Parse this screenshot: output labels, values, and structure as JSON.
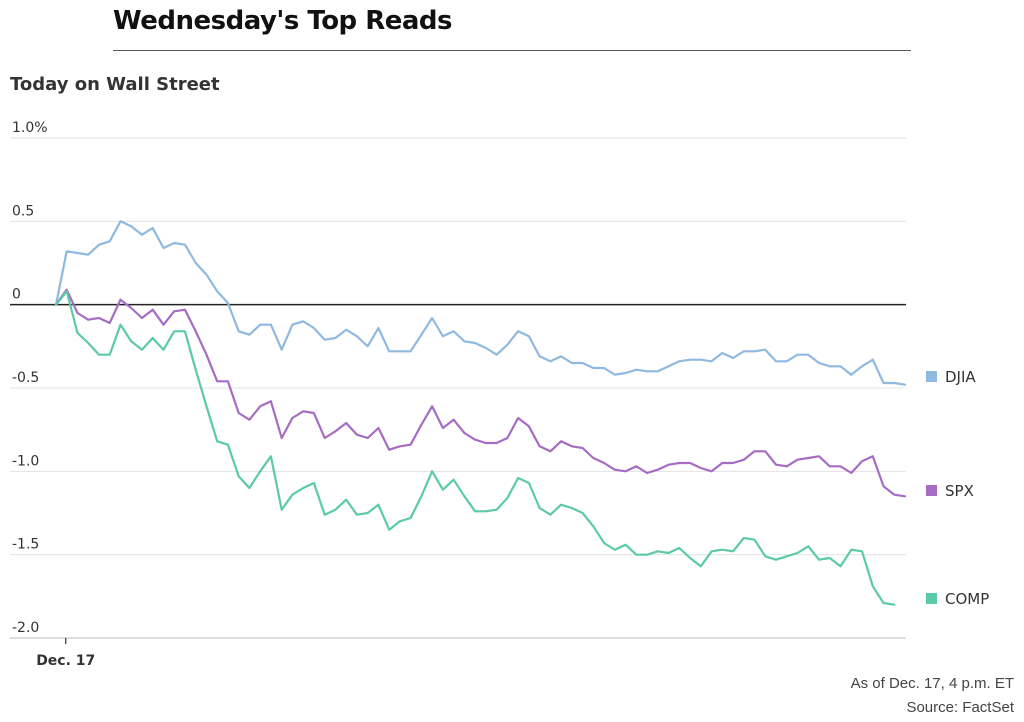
{
  "headline": "Wednesday's Top Reads",
  "footnote": {
    "as_of": "As of Dec. 17, 4 p.m. ET",
    "source": "Source: FactSet"
  },
  "chart_data": {
    "type": "line",
    "title": "Today on Wall Street",
    "xlabel": "",
    "ylabel": "",
    "ylim": [
      -2.0,
      1.0
    ],
    "yticks": [
      1.0,
      0.5,
      0,
      -0.5,
      -1.0,
      -1.5,
      -2.0
    ],
    "ytick_labels": [
      "1.0%",
      "0.5",
      "0",
      "-0.5",
      "-1.0",
      "-1.5",
      "-2.0"
    ],
    "x_tick_labels": [
      {
        "index": 1,
        "label": "Dec. 17"
      }
    ],
    "grid": true,
    "legend": "right",
    "series": [
      {
        "name": "DJIA",
        "color": "#8fb9e0",
        "values": [
          0.0,
          0.32,
          0.31,
          0.3,
          0.36,
          0.38,
          0.5,
          0.47,
          0.42,
          0.46,
          0.34,
          0.37,
          0.36,
          0.25,
          0.18,
          0.08,
          0.01,
          -0.16,
          -0.18,
          -0.12,
          -0.12,
          -0.27,
          -0.12,
          -0.1,
          -0.14,
          -0.21,
          -0.2,
          -0.15,
          -0.19,
          -0.25,
          -0.14,
          -0.28,
          -0.28,
          -0.28,
          -0.18,
          -0.08,
          -0.19,
          -0.16,
          -0.22,
          -0.23,
          -0.26,
          -0.3,
          -0.24,
          -0.16,
          -0.19,
          -0.31,
          -0.34,
          -0.31,
          -0.35,
          -0.35,
          -0.38,
          -0.38,
          -0.42,
          -0.41,
          -0.39,
          -0.4,
          -0.4,
          -0.37,
          -0.34,
          -0.33,
          -0.33,
          -0.34,
          -0.29,
          -0.32,
          -0.28,
          -0.28,
          -0.27,
          -0.34,
          -0.34,
          -0.3,
          -0.3,
          -0.35,
          -0.37,
          -0.37,
          -0.42,
          -0.37,
          -0.33,
          -0.47,
          -0.47,
          -0.48
        ]
      },
      {
        "name": "SPX",
        "color": "#a66cc4",
        "values": [
          0.0,
          0.09,
          -0.05,
          -0.09,
          -0.08,
          -0.11,
          0.03,
          -0.02,
          -0.08,
          -0.03,
          -0.12,
          -0.04,
          -0.03,
          -0.16,
          -0.3,
          -0.46,
          -0.46,
          -0.65,
          -0.69,
          -0.61,
          -0.58,
          -0.8,
          -0.68,
          -0.64,
          -0.65,
          -0.8,
          -0.76,
          -0.71,
          -0.78,
          -0.8,
          -0.74,
          -0.87,
          -0.85,
          -0.84,
          -0.72,
          -0.61,
          -0.74,
          -0.69,
          -0.77,
          -0.81,
          -0.83,
          -0.83,
          -0.8,
          -0.68,
          -0.73,
          -0.85,
          -0.88,
          -0.82,
          -0.85,
          -0.86,
          -0.92,
          -0.95,
          -0.99,
          -1.0,
          -0.97,
          -1.01,
          -0.99,
          -0.96,
          -0.95,
          -0.95,
          -0.98,
          -1.0,
          -0.95,
          -0.95,
          -0.93,
          -0.88,
          -0.88,
          -0.96,
          -0.97,
          -0.93,
          -0.92,
          -0.91,
          -0.97,
          -0.97,
          -1.01,
          -0.94,
          -0.91,
          -1.09,
          -1.14,
          -1.15
        ]
      },
      {
        "name": "COMP",
        "color": "#5cc9a8",
        "values": [
          0.0,
          0.08,
          -0.17,
          -0.23,
          -0.3,
          -0.3,
          -0.12,
          -0.22,
          -0.27,
          -0.2,
          -0.27,
          -0.16,
          -0.16,
          -0.39,
          -0.61,
          -0.82,
          -0.84,
          -1.03,
          -1.1,
          -1.0,
          -0.91,
          -1.23,
          -1.14,
          -1.1,
          -1.07,
          -1.26,
          -1.23,
          -1.17,
          -1.26,
          -1.25,
          -1.2,
          -1.35,
          -1.3,
          -1.28,
          -1.15,
          -1.0,
          -1.11,
          -1.05,
          -1.15,
          -1.24,
          -1.24,
          -1.23,
          -1.16,
          -1.04,
          -1.07,
          -1.22,
          -1.26,
          -1.2,
          -1.22,
          -1.25,
          -1.33,
          -1.43,
          -1.47,
          -1.44,
          -1.5,
          -1.5,
          -1.48,
          -1.49,
          -1.46,
          -1.52,
          -1.57,
          -1.48,
          -1.47,
          -1.48,
          -1.4,
          -1.41,
          -1.51,
          -1.53,
          -1.51,
          -1.49,
          -1.45,
          -1.53,
          -1.52,
          -1.57,
          -1.47,
          -1.48,
          -1.69,
          -1.79,
          -1.8
        ]
      }
    ]
  }
}
